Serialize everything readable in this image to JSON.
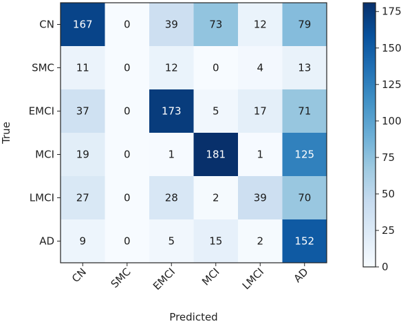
{
  "chart_data": {
    "type": "heatmap",
    "title": "",
    "xlabel": "Predicted",
    "ylabel": "True",
    "x_categories": [
      "CN",
      "SMC",
      "EMCI",
      "MCI",
      "LMCI",
      "AD"
    ],
    "y_categories": [
      "CN",
      "SMC",
      "EMCI",
      "MCI",
      "LMCI",
      "AD"
    ],
    "values": [
      [
        167,
        0,
        39,
        73,
        12,
        79
      ],
      [
        11,
        0,
        12,
        0,
        4,
        13
      ],
      [
        37,
        0,
        173,
        5,
        17,
        71
      ],
      [
        19,
        0,
        1,
        181,
        1,
        125
      ],
      [
        27,
        0,
        28,
        2,
        39,
        70
      ],
      [
        9,
        0,
        5,
        15,
        2,
        152
      ]
    ],
    "colormap": "Blues",
    "colorbar": {
      "range": [
        0,
        181
      ],
      "ticks": [
        0,
        25,
        50,
        75,
        100,
        125,
        150,
        175
      ],
      "tick_labels": [
        "0",
        "25",
        "50",
        "75",
        "100",
        "125",
        "150",
        "175"
      ]
    },
    "grid": false
  }
}
